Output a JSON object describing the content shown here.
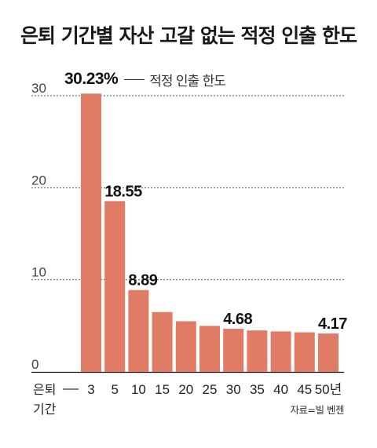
{
  "title": "은퇴 기간별 자산 고갈 없는 적정 인출 한도",
  "legend": {
    "value_label": "30.23%",
    "label": "적정 인출 한도"
  },
  "source": "자료=빌 벤젠",
  "colors": {
    "bar": "#E07B66",
    "grid": "#555555",
    "text": "#222222"
  },
  "chart_data": {
    "type": "bar",
    "title": "은퇴 기간별 자산 고갈 없는 적정 인출 한도",
    "xlabel": "은퇴 기간",
    "xlabel_lines": [
      "은퇴",
      "기간"
    ],
    "ylabel": "",
    "ylim": [
      0,
      30
    ],
    "yticks": [
      0,
      10,
      20,
      30
    ],
    "grid": true,
    "categories": [
      "3",
      "5",
      "10",
      "15",
      "20",
      "25",
      "30",
      "35",
      "40",
      "45",
      "50년"
    ],
    "series": [
      {
        "name": "적정 인출 한도",
        "values": [
          30.23,
          18.55,
          8.89,
          6.5,
          5.5,
          5.0,
          4.68,
          4.5,
          4.4,
          4.3,
          4.17
        ]
      }
    ],
    "data_labels": [
      {
        "category": "3",
        "text": "30.23%"
      },
      {
        "category": "5",
        "text": "18.55"
      },
      {
        "category": "10",
        "text": "8.89"
      },
      {
        "category": "30",
        "text": "4.68"
      },
      {
        "category": "50년",
        "text": "4.17"
      }
    ]
  }
}
